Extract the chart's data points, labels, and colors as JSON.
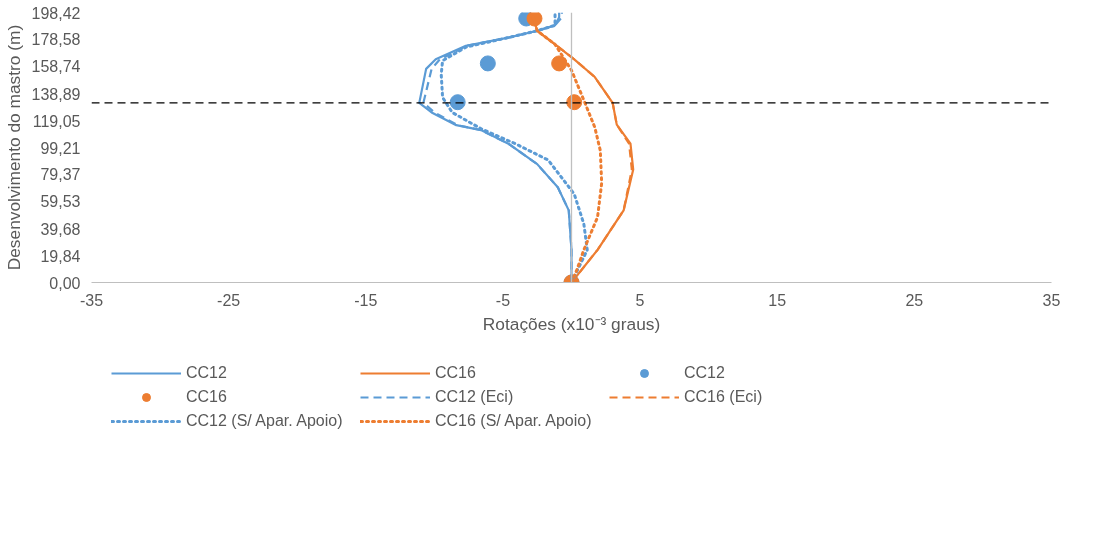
{
  "chart_data": {
    "type": "line",
    "xlabel": "Rotações (x10⁻³ graus)",
    "ylabel": "Desenvolvimento do mastro (m)",
    "xlim": [
      -35,
      35
    ],
    "xticks": [
      -35,
      -25,
      -15,
      -5,
      5,
      15,
      25,
      35
    ],
    "ylim": [
      0,
      198.42
    ],
    "yticks": [
      {
        "value": 0,
        "label": "0,00"
      },
      {
        "value": 19.84,
        "label": "19,84"
      },
      {
        "value": 39.68,
        "label": "39,68"
      },
      {
        "value": 59.53,
        "label": "59,53"
      },
      {
        "value": 79.37,
        "label": "79,37"
      },
      {
        "value": 99.21,
        "label": "99,21"
      },
      {
        "value": 119.05,
        "label": "119,05"
      },
      {
        "value": 138.89,
        "label": "138,89"
      },
      {
        "value": 158.74,
        "label": "158,74"
      },
      {
        "value": 178.58,
        "label": "178,58"
      },
      {
        "value": 198.42,
        "label": "198,42"
      }
    ],
    "grid": false,
    "legend": "bottom",
    "ref_lines": [
      {
        "axis": "y",
        "value": 132,
        "label": null,
        "color": "#000000",
        "line_style": "dashed"
      },
      {
        "axis": "x",
        "value": 0,
        "label": null,
        "color": "#bfbfbf",
        "line_style": "solid"
      }
    ],
    "series": [
      {
        "name": "CC12",
        "line_style": "solid",
        "color": "#5b9bd5",
        "x": [
          0,
          0,
          -0.2,
          -1.0,
          -2.5,
          -4.6,
          -6.6,
          -8.4,
          -10.2,
          -11.1,
          -10.6,
          -9.9,
          -7.7,
          -4.6,
          -2.5,
          -1.2,
          -0.9,
          -0.9
        ],
        "values": [
          0,
          24,
          53,
          70,
          87,
          102,
          112,
          115.6,
          125,
          132,
          157,
          164,
          174,
          180,
          185,
          189,
          195,
          198.4
        ]
      },
      {
        "name": "CC16",
        "line_style": "solid",
        "color": "#ed7d31",
        "x": [
          0,
          1.9,
          3.8,
          4.5,
          4.3,
          3.3,
          3.0,
          1.7,
          0.2,
          -1.2,
          -2.5,
          -2.8
        ],
        "values": [
          0,
          24,
          53,
          83,
          102,
          116,
          132,
          151,
          164,
          175,
          185,
          195
        ]
      },
      {
        "name": "CC12",
        "type": "scatter",
        "marker": "circle",
        "color": "#5b9bd5",
        "x": [
          0,
          -8.3,
          -6.1,
          -3.3
        ],
        "values": [
          0,
          132.5,
          161,
          194
        ]
      },
      {
        "name": "CC16",
        "type": "scatter",
        "marker": "circle",
        "color": "#ed7d31",
        "x": [
          0,
          0.2,
          -0.9,
          -2.7
        ],
        "values": [
          0,
          132.5,
          161,
          194
        ]
      },
      {
        "name": "CC12 (Eci)",
        "line_style": "dashed",
        "color": "#5b9bd5",
        "x": [
          0,
          0,
          -0.2,
          -1.0,
          -2.5,
          -4.6,
          -6.6,
          -8.3,
          -10.0,
          -10.8,
          -10.2,
          -9.6,
          -7.6,
          -4.6,
          -2.5,
          -1.2,
          -0.7,
          -0.7
        ],
        "values": [
          0,
          24,
          53,
          70,
          87,
          102,
          112,
          115.6,
          125,
          132,
          157,
          164,
          174,
          180,
          185,
          189,
          195,
          198.4
        ]
      },
      {
        "name": "CC16 (Eci)",
        "line_style": "dashed",
        "color": "#ed7d31",
        "x": [
          0,
          1.9,
          3.8,
          4.4,
          4.2,
          3.3,
          3.0,
          1.7,
          0.2,
          -1.2,
          -2.5,
          -2.8
        ],
        "values": [
          0,
          24,
          53,
          83,
          102,
          116,
          132,
          151,
          164,
          175,
          185,
          195
        ]
      },
      {
        "name": "CC12 (S/ Apar. Apoio)",
        "line_style": "dotted",
        "color": "#5b9bd5",
        "x": [
          0,
          1.15,
          0.9,
          0.2,
          -1.7,
          -4.1,
          -6.6,
          -8.7,
          -9.4,
          -9.5,
          -9.4,
          -7.7,
          -4.6,
          -2.5,
          -1.2,
          -1.2
        ],
        "values": [
          0,
          24,
          43,
          65,
          90,
          102,
          113,
          125,
          136,
          153,
          163,
          173,
          180,
          185,
          189,
          197
        ]
      },
      {
        "name": "CC16 (S/ Apar. Apoio)",
        "line_style": "dotted",
        "color": "#ed7d31",
        "x": [
          0,
          0.4,
          0.9,
          1.9,
          2.2,
          2.1,
          1.7,
          0.9,
          0,
          -1.2,
          -2.5,
          -2.8
        ],
        "values": [
          0,
          9.5,
          24,
          48,
          73,
          97,
          114,
          134,
          156,
          175,
          185,
          195
        ]
      }
    ]
  }
}
